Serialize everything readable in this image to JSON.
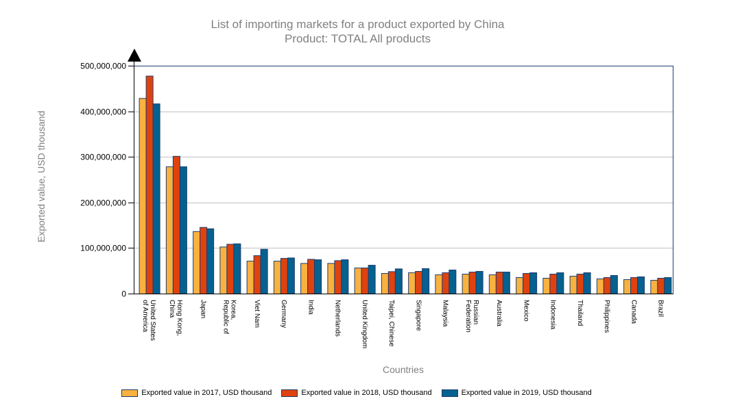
{
  "chart_data": {
    "type": "bar",
    "title": "List of importing markets for a product exported by China",
    "subtitle": "Product: TOTAL All products",
    "xlabel": "Countries",
    "ylabel": "Exported value, USD thousand",
    "ylim": [
      0,
      500000000
    ],
    "yticks": [
      "0",
      "100,000,000",
      "200,000,000",
      "300,000,000",
      "400,000,000",
      "500,000,000"
    ],
    "grid": true,
    "legend_position": "bottom",
    "categories": [
      [
        "United States",
        "of America"
      ],
      [
        "Hong Kong,",
        "China"
      ],
      [
        "Japan"
      ],
      [
        "Korea,",
        "Republic of"
      ],
      [
        "Viet Nam"
      ],
      [
        "Germany"
      ],
      [
        "India"
      ],
      [
        "Netherlands"
      ],
      [
        "United Kingdom"
      ],
      [
        "Taipei, Chinese"
      ],
      [
        "Singapore"
      ],
      [
        "Malaysia"
      ],
      [
        "Russian",
        "Federation"
      ],
      [
        "Australia"
      ],
      [
        "Mexico"
      ],
      [
        "Indonesia"
      ],
      [
        "Thailand"
      ],
      [
        "Philippines"
      ],
      [
        "Canada"
      ],
      [
        "Brazil"
      ]
    ],
    "series": [
      {
        "name": "Exported value in 2017, USD thousand",
        "color": "#F9B13F",
        "values": [
          429000000,
          279000000,
          137000000,
          103000000,
          72000000,
          72000000,
          67000000,
          67000000,
          57000000,
          45000000,
          46500000,
          42000000,
          43500000,
          42000000,
          36000000,
          34500000,
          39000000,
          33000000,
          31500000,
          30000000
        ]
      },
      {
        "name": "Exported value in 2018, USD thousand",
        "color": "#DF420E",
        "values": [
          478000000,
          302000000,
          146000000,
          109000000,
          84000000,
          78000000,
          76000000,
          73000000,
          57000000,
          49000000,
          49500000,
          46500000,
          48000000,
          48000000,
          45000000,
          43500000,
          43500000,
          36000000,
          36000000,
          34500000
        ]
      },
      {
        "name": "Exported value in 2019, USD thousand",
        "color": "#05618F",
        "values": [
          417000000,
          279000000,
          143000000,
          110000000,
          98000000,
          79000000,
          75000000,
          75000000,
          63000000,
          55000000,
          55500000,
          52500000,
          49500000,
          48000000,
          46500000,
          46500000,
          46500000,
          40500000,
          37500000,
          36000000
        ]
      }
    ]
  }
}
